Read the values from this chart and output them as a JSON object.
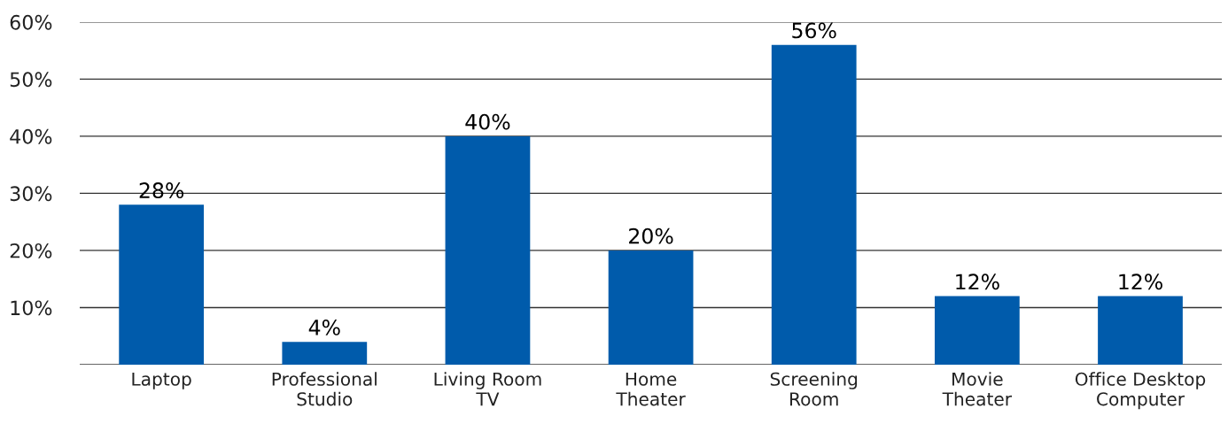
{
  "chart_data": {
    "type": "bar",
    "categories": [
      "Laptop",
      "Professional\nStudio",
      "Living Room\nTV",
      "Home\nTheater",
      "Screening\nRoom",
      "Movie\nTheater",
      "Office Desktop\nComputer"
    ],
    "values": [
      28,
      4,
      40,
      20,
      56,
      12,
      12
    ],
    "value_labels": [
      "28%",
      "4%",
      "40%",
      "20%",
      "56%",
      "12%",
      "12%"
    ],
    "color": "#005bab",
    "ylim": [
      0,
      60
    ],
    "yticks": [
      {
        "value": 0,
        "label": null
      },
      {
        "value": 10,
        "label": "10%"
      },
      {
        "value": 20,
        "label": "20%"
      },
      {
        "value": 30,
        "label": "30%"
      },
      {
        "value": 40,
        "label": "40%"
      },
      {
        "value": 50,
        "label": "50%"
      },
      {
        "value": 60,
        "label": "60%"
      }
    ],
    "grid": "y"
  }
}
